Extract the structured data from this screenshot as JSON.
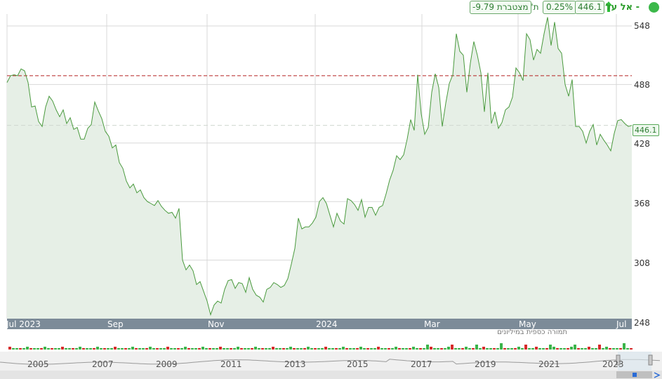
{
  "header": {
    "title": "אל על -",
    "price": "446.1",
    "change_pct": "0.25%",
    "ytd_label": "ת' מצטברת",
    "ytd_value": "-9.79",
    "accent_color": "#2e9e2e"
  },
  "chart_data": {
    "type": "area",
    "line_color": "#4a9a3e",
    "fill_color": "#e6efe6",
    "x_tick_labels": [
      "Jul 2023",
      "Sep",
      "Nov",
      "2024",
      "Mar",
      "May",
      "Jul"
    ],
    "y_tick_labels": [
      "548",
      "488",
      "428",
      "368",
      "308",
      "248"
    ],
    "ylim": [
      248,
      560
    ],
    "last_value_label": "446.1",
    "reference_line": 497,
    "series": [
      {
        "values": [
          490,
          497,
          498,
          497,
          504,
          502,
          490,
          465,
          466,
          450,
          445,
          465,
          476,
          471,
          462,
          455,
          462,
          448,
          454,
          442,
          444,
          432,
          432,
          443,
          447,
          470,
          461,
          453,
          440,
          435,
          423,
          426,
          408,
          402,
          389,
          382,
          386,
          377,
          380,
          372,
          368,
          366,
          364,
          369,
          363,
          359,
          356,
          357,
          351,
          361,
          308,
          298,
          303,
          297,
          283,
          286,
          276,
          266,
          252,
          262,
          266,
          264,
          278,
          287,
          288,
          279,
          285,
          284,
          275,
          290,
          278,
          272,
          270,
          265,
          278,
          280,
          285,
          283,
          280,
          282,
          289,
          304,
          320,
          351,
          340,
          342,
          342,
          346,
          352,
          368,
          372,
          366,
          354,
          342,
          356,
          348,
          345,
          371,
          369,
          365,
          359,
          370,
          352,
          362,
          362,
          354,
          362,
          364,
          376,
          390,
          400,
          415,
          411,
          416,
          432,
          452,
          441,
          498,
          458,
          437,
          444,
          480,
          499,
          485,
          445,
          469,
          489,
          498,
          540,
          522,
          518,
          480,
          510,
          532,
          518,
          500,
          460,
          500,
          448,
          460,
          443,
          449,
          462,
          465,
          475,
          505,
          500,
          492,
          540,
          534,
          513,
          524,
          520,
          540,
          557,
          528,
          552,
          525,
          520,
          488,
          476,
          493,
          445,
          445,
          440,
          428,
          440,
          447,
          426,
          437,
          431,
          426,
          420,
          438,
          451,
          452,
          448,
          445,
          446.1
        ]
      }
    ],
    "volume_label": "תמורה כספית במיליונים",
    "navigator_labels": [
      "2005",
      "2007",
      "2009",
      "2011",
      "2013",
      "2015",
      "2017",
      "2019",
      "2021",
      "2023"
    ]
  }
}
